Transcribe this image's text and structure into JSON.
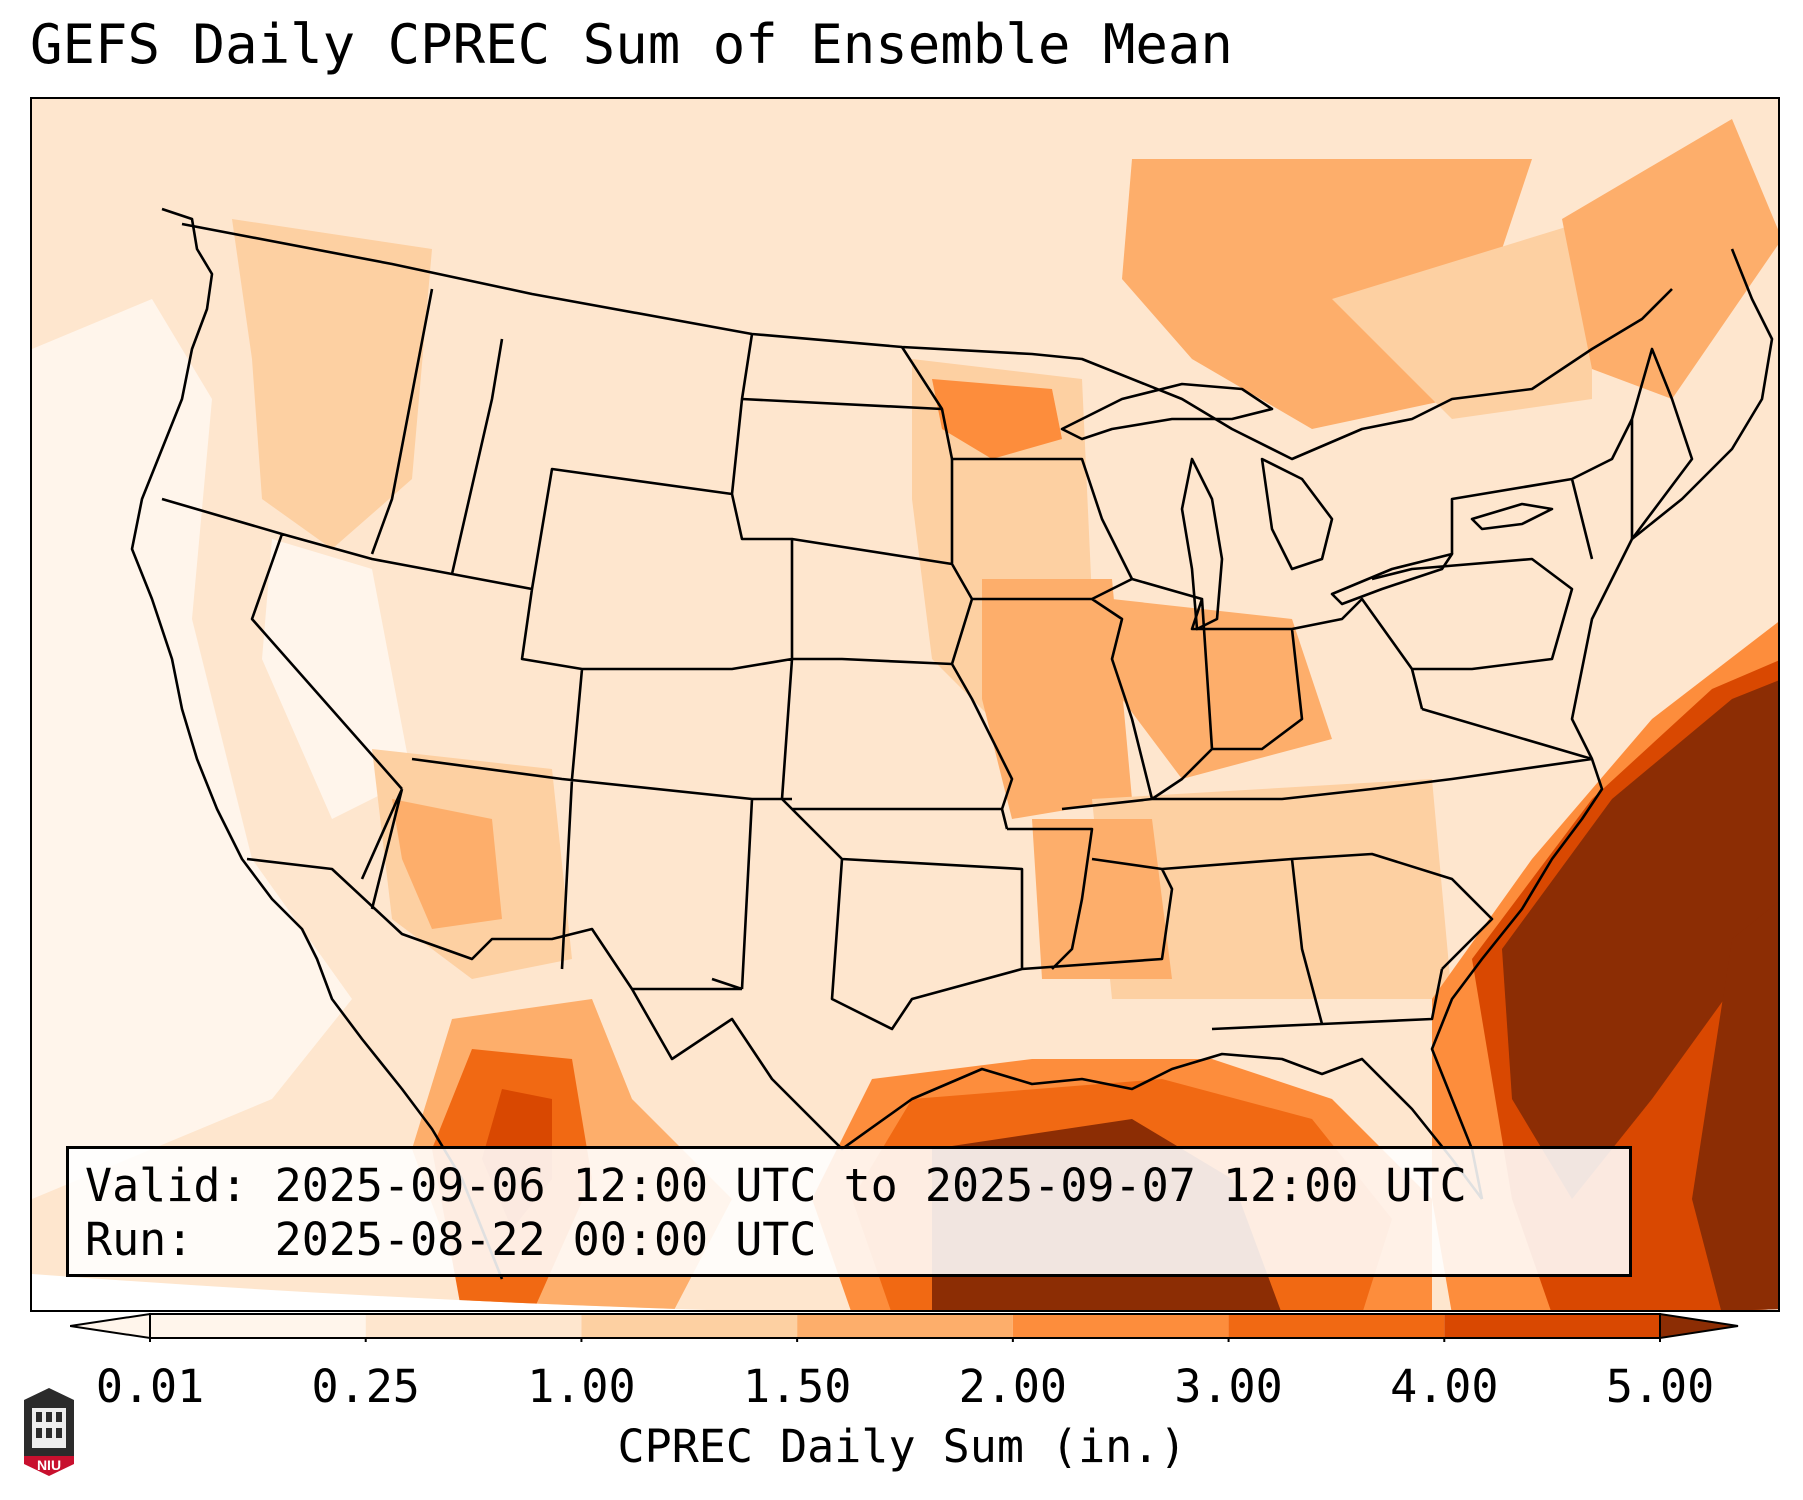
{
  "title": "GEFS Daily CPREC Sum of Ensemble Mean",
  "valid_line": "Valid: 2025-09-06 12:00 UTC to 2025-09-07 12:00 UTC",
  "run_line": "Run:   2025-08-22 00:00 UTC",
  "colorbar": {
    "label": "CPREC Daily Sum (in.)",
    "ticks": [
      "0.01",
      "0.25",
      "1.00",
      "1.50",
      "2.00",
      "3.00",
      "4.00",
      "5.00"
    ],
    "colors": [
      "#fff5eb",
      "#fee6ce",
      "#fdd0a2",
      "#fdae6b",
      "#fd8d3c",
      "#f16913",
      "#d94801",
      "#8c2d04"
    ],
    "extend": "both"
  },
  "logo_text": "NIU",
  "colors": {
    "border": "#000000",
    "background": "#ffffff"
  }
}
